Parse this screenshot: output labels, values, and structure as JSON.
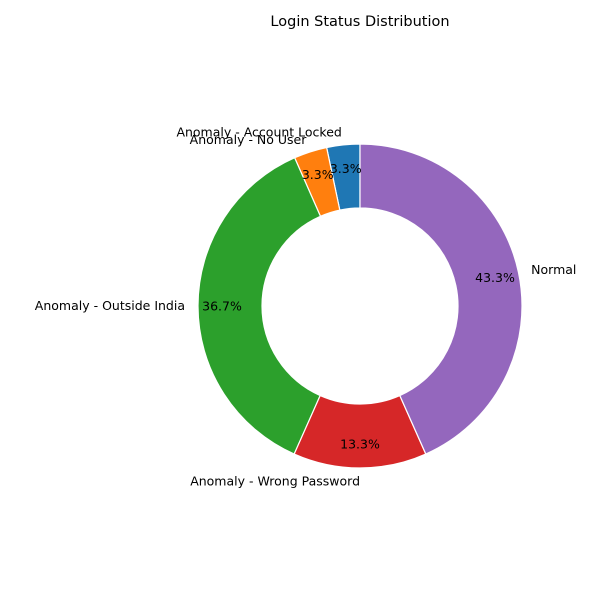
{
  "chart_data": {
    "type": "pie",
    "title": "Login Status Distribution",
    "donut": true,
    "start_angle_deg": 90,
    "direction": "counterclockwise",
    "slices": [
      {
        "label": "Anomaly - Account Locked",
        "value": 3.3,
        "pct_label": "3.3%",
        "color": "#1f77b4"
      },
      {
        "label": "Anomaly - No User",
        "value": 3.3,
        "pct_label": "3.3%",
        "color": "#ff7f0e"
      },
      {
        "label": "Anomaly - Outside India",
        "value": 36.7,
        "pct_label": "36.7%",
        "color": "#2ca02c"
      },
      {
        "label": "Anomaly - Wrong Password",
        "value": 13.3,
        "pct_label": "13.3%",
        "color": "#d62728"
      },
      {
        "label": "Normal",
        "value": 43.3,
        "pct_label": "43.3%",
        "color": "#9467bd"
      }
    ]
  }
}
